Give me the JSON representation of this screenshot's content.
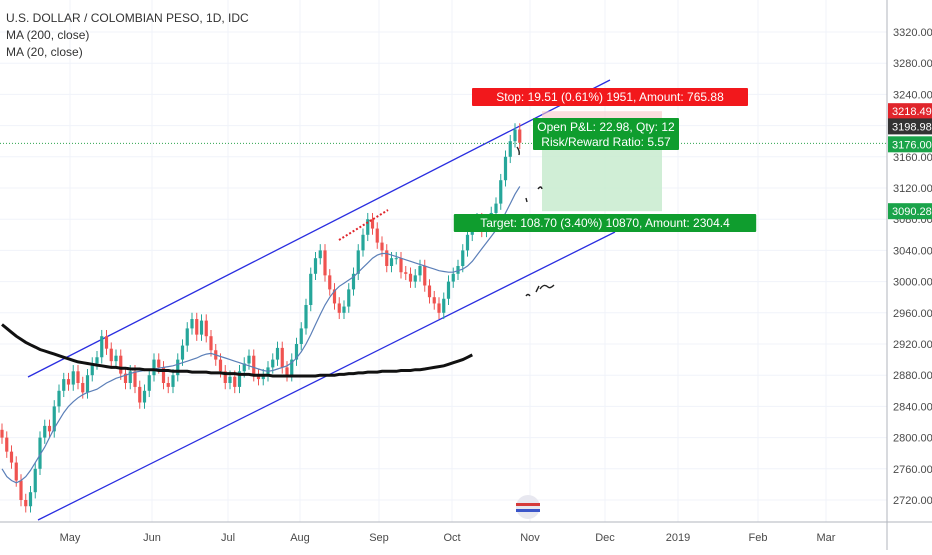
{
  "chart_data": {
    "type": "candlestick",
    "title": "U.S. DOLLAR / COLOMBIAN PESO, 1D, IDC",
    "indicators": [
      "MA (200, close)",
      "MA (20, close)"
    ],
    "y_axis": {
      "position": "right",
      "ticks": [
        2720,
        2760,
        2800,
        2840,
        2880,
        2920,
        2960,
        3000,
        3040,
        3080,
        3120,
        3160,
        3200,
        3240,
        3280,
        3320
      ],
      "tick_labels": [
        "2720.00",
        "2760.00",
        "2800.00",
        "2840.00",
        "2880.00",
        "2920.00",
        "2960.00",
        "3000.00",
        "3040.00",
        "3080.00",
        "3120.00",
        "3160.00",
        "3200.00",
        "3240.00",
        "3280.00",
        "3320.00"
      ],
      "range": [
        2700,
        3340
      ]
    },
    "x_axis": {
      "labels": [
        "May",
        "Jun",
        "Jul",
        "Aug",
        "Sep",
        "Oct",
        "Nov",
        "Dec",
        "2019",
        "Feb",
        "Mar"
      ]
    },
    "price_badges": [
      {
        "value": 3218.49,
        "label": "3218.49",
        "color": "#e0252b"
      },
      {
        "value": 3198.98,
        "label": "3198.98",
        "color": "#333333"
      },
      {
        "value": 3176.0,
        "label": "3176.00",
        "color": "#1aa34a"
      },
      {
        "value": 3090.28,
        "label": "3090.28",
        "color": "#1aa34a"
      }
    ],
    "position": {
      "side": "long",
      "entry": 3176.0,
      "stop": 3218.49,
      "target": 3090.28,
      "stop_label": "Stop: 19.51 (0.61%) 1951, Amount: 765.88",
      "pl_label": "Open P&L: 22.98, Qty: 12",
      "rr_label": "Risk/Reward Ratio: 5.57",
      "target_label": "Target: 108.70 (3.40%) 10870, Amount: 2304.4"
    },
    "candles_close": [
      2800,
      2782,
      2768,
      2745,
      2720,
      2712,
      2730,
      2760,
      2800,
      2815,
      2808,
      2840,
      2860,
      2875,
      2868,
      2885,
      2870,
      2858,
      2880,
      2895,
      2903,
      2930,
      2914,
      2898,
      2905,
      2882,
      2870,
      2885,
      2865,
      2845,
      2860,
      2880,
      2900,
      2890,
      2870,
      2865,
      2880,
      2900,
      2918,
      2940,
      2952,
      2932,
      2950,
      2930,
      2912,
      2900,
      2885,
      2870,
      2878,
      2865,
      2885,
      2895,
      2905,
      2880,
      2875,
      2880,
      2890,
      2900,
      2915,
      2890,
      2880,
      2900,
      2920,
      2940,
      2970,
      3010,
      3030,
      3040,
      3008,
      2990,
      2972,
      2960,
      2968,
      2990,
      3010,
      3040,
      3060,
      3080,
      3068,
      3050,
      3040,
      3020,
      3030,
      3030,
      3012,
      3010,
      3000,
      3008,
      3020,
      2995,
      2980,
      2972,
      2960,
      2978,
      3000,
      3010,
      3020,
      3040,
      3060,
      3078,
      3080,
      3065,
      3076,
      3088,
      3100,
      3130,
      3160,
      3180,
      3195,
      3178
    ],
    "ma20": [
      2760,
      2750,
      2745,
      2742,
      2745,
      2750,
      2758,
      2768,
      2778,
      2788,
      2800,
      2812,
      2822,
      2832,
      2840,
      2846,
      2851,
      2855,
      2858,
      2860,
      2862,
      2866,
      2870,
      2873,
      2876,
      2878,
      2880,
      2882,
      2884,
      2885,
      2886,
      2887,
      2888,
      2889,
      2890,
      2891,
      2892,
      2894,
      2896,
      2898,
      2900,
      2902,
      2905,
      2907,
      2908,
      2906,
      2904,
      2902,
      2900,
      2898,
      2896,
      2894,
      2892,
      2890,
      2888,
      2886,
      2885,
      2886,
      2888,
      2890,
      2892,
      2896,
      2902,
      2910,
      2920,
      2932,
      2945,
      2958,
      2970,
      2980,
      2988,
      2994,
      2998,
      3002,
      3006,
      3012,
      3018,
      3024,
      3030,
      3034,
      3036,
      3036,
      3034,
      3032,
      3030,
      3028,
      3026,
      3024,
      3022,
      3020,
      3018,
      3016,
      3014,
      3013,
      3012,
      3012,
      3014,
      3016,
      3020,
      3026,
      3034,
      3042,
      3050,
      3058,
      3066,
      3076,
      3088,
      3100,
      3112,
      3122
    ],
    "ma200": [
      2945,
      2940,
      2935,
      2930,
      2926,
      2922,
      2919,
      2916,
      2913,
      2911,
      2909,
      2907,
      2905,
      2903,
      2901,
      2899,
      2897,
      2896,
      2895,
      2894,
      2893,
      2892,
      2891,
      2890,
      2890,
      2889,
      2889,
      2888,
      2888,
      2888,
      2887,
      2887,
      2887,
      2886,
      2886,
      2886,
      2885,
      2885,
      2885,
      2885,
      2884,
      2884,
      2884,
      2884,
      2883,
      2883,
      2883,
      2882,
      2882,
      2882,
      2881,
      2881,
      2881,
      2880,
      2880,
      2880,
      2880,
      2879,
      2879,
      2879,
      2879,
      2879,
      2879,
      2879,
      2879,
      2879,
      2879,
      2880,
      2880,
      2880,
      2880,
      2881,
      2881,
      2882,
      2882,
      2883,
      2883,
      2884,
      2884,
      2884,
      2885,
      2885,
      2885,
      2885,
      2886,
      2886,
      2886,
      2887,
      2887,
      2888,
      2889,
      2890,
      2891,
      2892,
      2894,
      2896,
      2898,
      2900,
      2903,
      2906
    ]
  }
}
